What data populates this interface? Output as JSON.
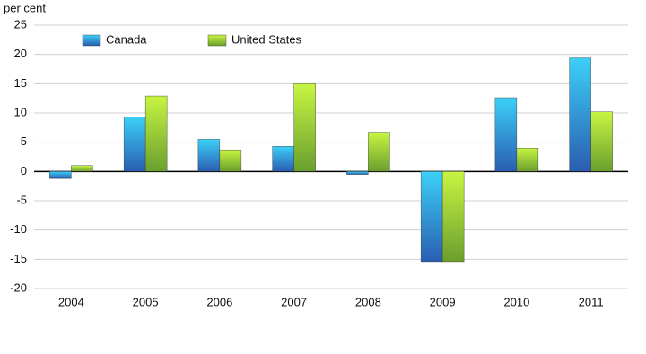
{
  "chart_data": {
    "type": "bar",
    "y_label": "per cent",
    "categories": [
      "2004",
      "2005",
      "2006",
      "2007",
      "2008",
      "2009",
      "2010",
      "2011"
    ],
    "series": [
      {
        "name": "Canada",
        "color": "#2a5db0",
        "values": [
          -1.2,
          9.3,
          5.5,
          4.3,
          -0.5,
          -15.4,
          12.6,
          19.4
        ]
      },
      {
        "name": "United States",
        "color": "#6a9f2e",
        "values": [
          1.0,
          12.9,
          3.7,
          15.0,
          6.7,
          -15.4,
          4.0,
          10.2
        ]
      }
    ],
    "ylim": [
      -20,
      25
    ],
    "yticks": [
      -20,
      -15,
      -10,
      -5,
      0,
      5,
      10,
      15,
      20,
      25
    ],
    "grid": true,
    "legend": "top-left"
  }
}
